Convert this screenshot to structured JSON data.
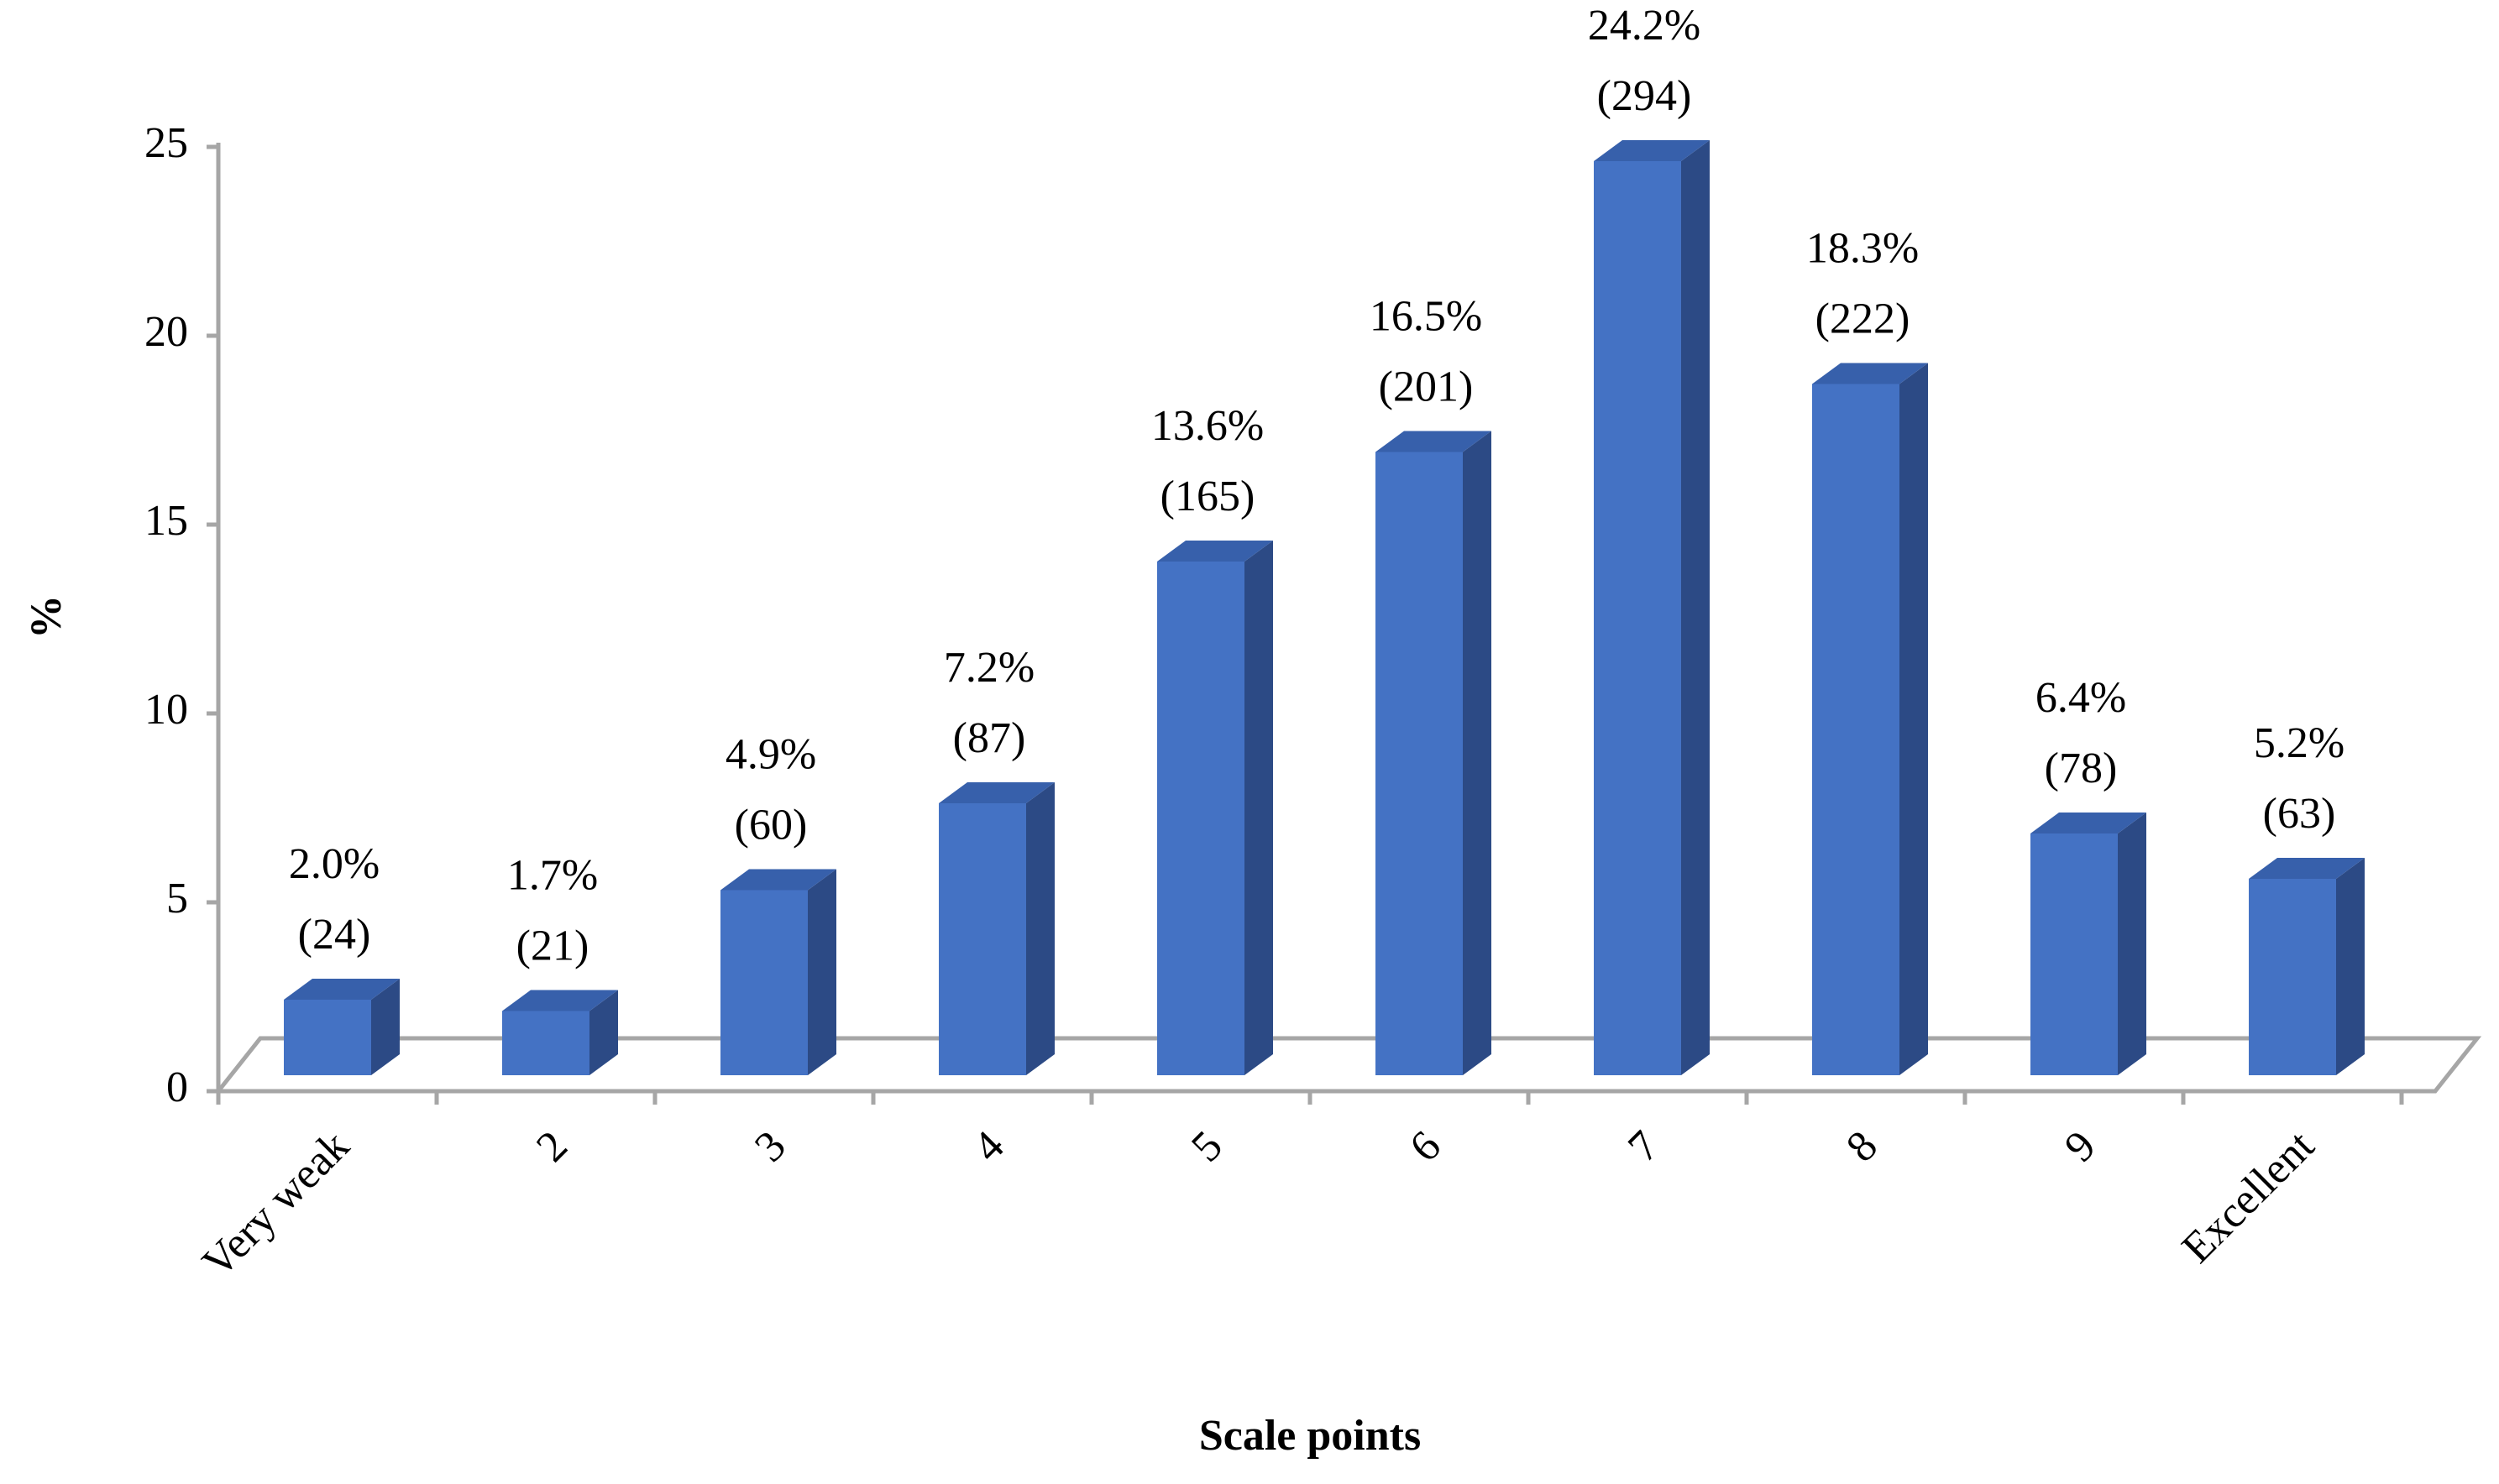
{
  "chart_data": {
    "type": "bar",
    "x_label": "Scale points",
    "y_label": "%",
    "categories": [
      "Very weak",
      "2",
      "3",
      "4",
      "5",
      "6",
      "7",
      "8",
      "9",
      "Excellent"
    ],
    "values": [
      2.0,
      1.7,
      4.9,
      7.2,
      13.6,
      16.5,
      24.2,
      18.3,
      6.4,
      5.2
    ],
    "value_labels": [
      "2.0%",
      "1.7%",
      "4.9%",
      "7.2%",
      "13.6%",
      "16.5%",
      "24.2%",
      "18.3%",
      "6.4%",
      "5.2%"
    ],
    "count_labels": [
      "(24)",
      "(21)",
      "(60)",
      "(87)",
      "(165)",
      "(201)",
      "(294)",
      "(222)",
      "(78)",
      "(63)"
    ],
    "color": "#4472c4",
    "ylim": [
      0,
      25
    ],
    "yticks": [
      0,
      5,
      10,
      15,
      20,
      25
    ]
  }
}
